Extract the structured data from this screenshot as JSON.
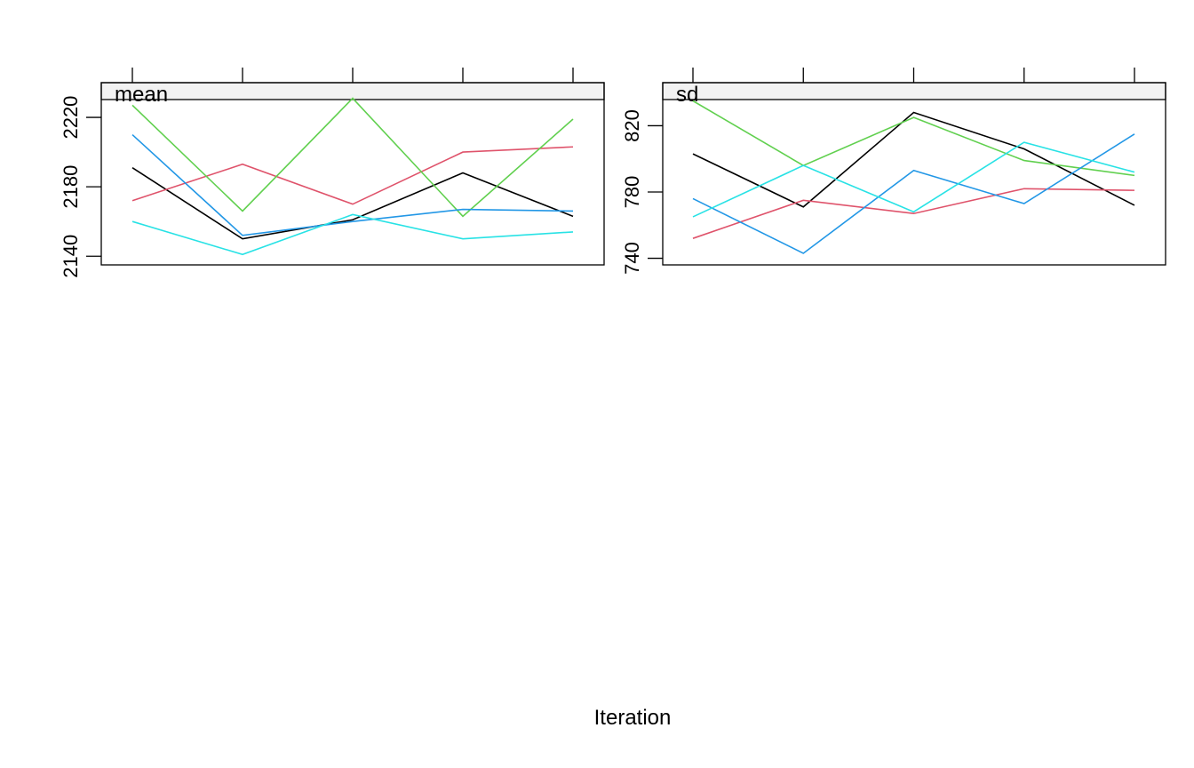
{
  "chart_data": {
    "type": "line",
    "xlabel": "Iteration",
    "x": [
      1,
      2,
      3,
      4,
      5
    ],
    "series_colors": [
      "#000000",
      "#df536b",
      "#61d04f",
      "#2297e6",
      "#28e2e5"
    ],
    "panels": [
      {
        "strip": "mean",
        "ylim": [
          2135,
          2240
        ],
        "yticks": [
          2140,
          2180,
          2220
        ],
        "ytick_labels": [
          "2140",
          "2180",
          "2220"
        ],
        "series": [
          {
            "color": "#000000",
            "values": [
              2191,
              2150,
              2161,
              2188,
              2163
            ]
          },
          {
            "color": "#df536b",
            "values": [
              2172,
              2193,
              2170,
              2200,
              2203
            ]
          },
          {
            "color": "#61d04f",
            "values": [
              2227,
              2166,
              2231,
              2163,
              2219
            ]
          },
          {
            "color": "#2297e6",
            "values": [
              2210,
              2152,
              2160,
              2167,
              2166
            ]
          },
          {
            "color": "#28e2e5",
            "values": [
              2160,
              2141,
              2164,
              2150,
              2154
            ]
          }
        ]
      },
      {
        "strip": "sd",
        "ylim": [
          736,
          846
        ],
        "yticks": [
          740,
          780,
          820
        ],
        "ytick_labels": [
          "740",
          "780",
          "820"
        ],
        "series": [
          {
            "color": "#000000",
            "values": [
              803,
              771,
              828,
              806,
              772
            ]
          },
          {
            "color": "#df536b",
            "values": [
              752,
              775,
              767,
              782,
              781
            ]
          },
          {
            "color": "#61d04f",
            "values": [
              835,
              796,
              825,
              799,
              790
            ]
          },
          {
            "color": "#2297e6",
            "values": [
              776,
              743,
              793,
              773,
              815
            ]
          },
          {
            "color": "#28e2e5",
            "values": [
              765,
              796,
              768,
              810,
              792
            ]
          }
        ]
      }
    ]
  }
}
